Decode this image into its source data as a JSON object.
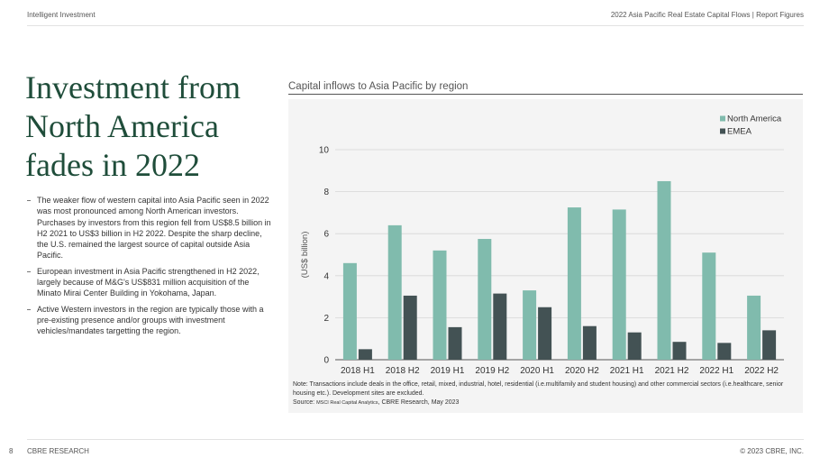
{
  "header": {
    "left": "Intelligent Investment",
    "right": "2022 Asia Pacific Real Estate Capital Flows | Report Figures"
  },
  "title_lines": [
    "Investment from",
    "North America",
    "fades in 2022"
  ],
  "bullets": [
    "The weaker flow of western capital into Asia Pacific seen in 2022 was most pronounced among North American investors. Purchases by investors from this region fell from US$8.5 billion in H2 2021 to US$3 billion in H2 2022. Despite the sharp decline, the U.S. remained the largest source of capital outside Asia Pacific.",
    "European investment in Asia Pacific strengthened in H2 2022, largely because of M&G's US$831 million acquisition of the Minato Mirai Center Building in Yokohama, Japan.",
    "Active Western investors in the region are typically those with a pre-existing presence and/or groups with investment vehicles/mandates targetting the region."
  ],
  "chart_title": "Capital inflows to Asia Pacific by region",
  "chart_data": {
    "type": "bar",
    "title": "Capital inflows to Asia Pacific by region",
    "ylabel": "(US$ billion)",
    "xlabel": "",
    "categories": [
      "2018 H1",
      "2018 H2",
      "2019 H1",
      "2019 H2",
      "2020 H1",
      "2020 H2",
      "2021 H1",
      "2021 H2",
      "2022 H1",
      "2022 H2"
    ],
    "series": [
      {
        "name": "North America",
        "color": "#80bbad",
        "values": [
          4.6,
          6.4,
          5.2,
          5.75,
          3.3,
          7.25,
          7.15,
          8.5,
          5.1,
          3.05
        ]
      },
      {
        "name": "EMEA",
        "color": "#435254",
        "values": [
          0.5,
          3.05,
          1.55,
          3.15,
          2.5,
          1.6,
          1.3,
          0.85,
          0.8,
          1.4
        ]
      }
    ],
    "ylim": [
      0,
      10
    ],
    "yticks": [
      0,
      2,
      4,
      6,
      8,
      10
    ],
    "grid": true,
    "legend": "top-right"
  },
  "note": "Note: Transactions include deals in the office, retail, mixed, industrial, hotel, residential (i.e.multifamily and student housing) and other commercial sectors (i.e.healthcare, senior housing etc.). Development sites are excluded.",
  "source": {
    "label": "Source: ",
    "small": "MSCI Real Capital Analytics",
    "rest": ", CBRE Research, May 2023"
  },
  "footer": {
    "page": "8",
    "left": "CBRE RESEARCH",
    "right": "© 2023 CBRE, INC."
  }
}
